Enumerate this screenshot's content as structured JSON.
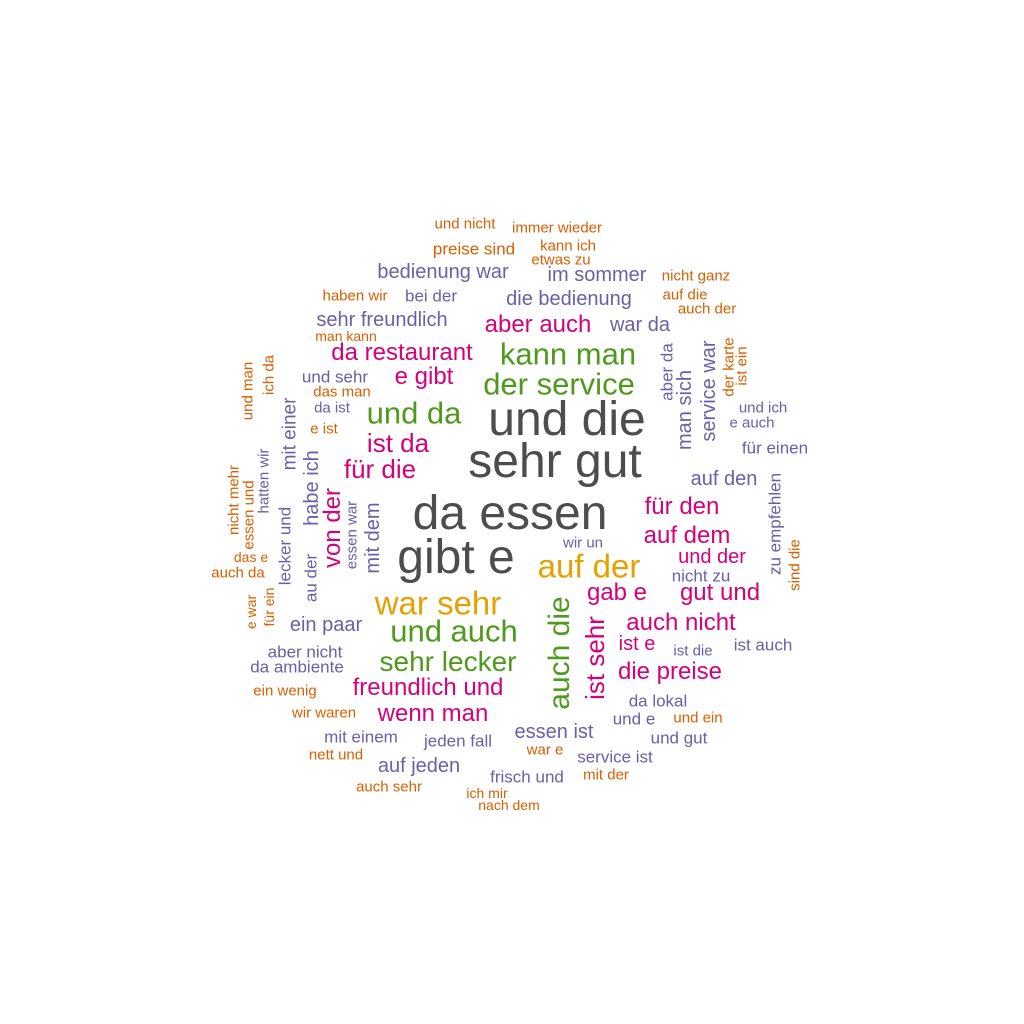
{
  "colors": {
    "gray": "#4d4d4d",
    "orange": "#d95f02",
    "purple": "#6a5fa8",
    "magenta": "#d6007a",
    "green": "#4f9a1c",
    "gold": "#e6a100"
  },
  "words": [
    {
      "text": "und nicht",
      "color": "orange"
    },
    {
      "text": "immer wieder",
      "color": "orange"
    },
    {
      "text": "preise sind",
      "color": "orange"
    },
    {
      "text": "kann ich",
      "color": "orange"
    },
    {
      "text": "etwas zu",
      "color": "orange"
    },
    {
      "text": "bedienung war",
      "color": "purple"
    },
    {
      "text": "im sommer",
      "color": "purple"
    },
    {
      "text": "nicht ganz",
      "color": "orange"
    },
    {
      "text": "haben wir",
      "color": "orange"
    },
    {
      "text": "bei der",
      "color": "purple"
    },
    {
      "text": "die bedienung",
      "color": "purple"
    },
    {
      "text": "auf die",
      "color": "orange"
    },
    {
      "text": "auch der",
      "color": "orange"
    },
    {
      "text": "sehr freundlich",
      "color": "purple"
    },
    {
      "text": "aber auch",
      "color": "magenta"
    },
    {
      "text": "war da",
      "color": "purple"
    },
    {
      "text": "man kann",
      "color": "orange"
    },
    {
      "text": "da restaurant",
      "color": "magenta"
    },
    {
      "text": "kann man",
      "color": "green"
    },
    {
      "text": "und sehr",
      "color": "purple"
    },
    {
      "text": "e gibt",
      "color": "magenta"
    },
    {
      "text": "der service",
      "color": "green"
    },
    {
      "text": "das man",
      "color": "orange"
    },
    {
      "text": "da ist",
      "color": "purple"
    },
    {
      "text": "und da",
      "color": "green"
    },
    {
      "text": "und die",
      "color": "gray"
    },
    {
      "text": "und ich",
      "color": "purple"
    },
    {
      "text": "e auch",
      "color": "purple"
    },
    {
      "text": "e ist",
      "color": "orange"
    },
    {
      "text": "ist da",
      "color": "magenta"
    },
    {
      "text": "für einen",
      "color": "purple"
    },
    {
      "text": "sehr gut",
      "color": "gray"
    },
    {
      "text": "für die",
      "color": "magenta"
    },
    {
      "text": "auf den",
      "color": "purple"
    },
    {
      "text": "da essen",
      "color": "gray"
    },
    {
      "text": "für den",
      "color": "magenta"
    },
    {
      "text": "auf dem",
      "color": "magenta"
    },
    {
      "text": "gibt e",
      "color": "gray"
    },
    {
      "text": "wir un",
      "color": "purple"
    },
    {
      "text": "auf der",
      "color": "gold"
    },
    {
      "text": "und der",
      "color": "magenta"
    },
    {
      "text": "das e",
      "color": "orange"
    },
    {
      "text": "auch da",
      "color": "orange"
    },
    {
      "text": "nicht zu",
      "color": "purple"
    },
    {
      "text": "gab e",
      "color": "magenta"
    },
    {
      "text": "gut und",
      "color": "magenta"
    },
    {
      "text": "war sehr",
      "color": "gold"
    },
    {
      "text": "ein paar",
      "color": "purple"
    },
    {
      "text": "und auch",
      "color": "green"
    },
    {
      "text": "auch nicht",
      "color": "magenta"
    },
    {
      "text": "ist e",
      "color": "magenta"
    },
    {
      "text": "ist die",
      "color": "purple"
    },
    {
      "text": "ist auch",
      "color": "purple"
    },
    {
      "text": "aber nicht",
      "color": "purple"
    },
    {
      "text": "da ambiente",
      "color": "purple"
    },
    {
      "text": "sehr lecker",
      "color": "green"
    },
    {
      "text": "die preise",
      "color": "magenta"
    },
    {
      "text": "ein wenig",
      "color": "orange"
    },
    {
      "text": "freundlich und",
      "color": "magenta"
    },
    {
      "text": "da lokal",
      "color": "purple"
    },
    {
      "text": "wir waren",
      "color": "orange"
    },
    {
      "text": "wenn man",
      "color": "magenta"
    },
    {
      "text": "und e",
      "color": "purple"
    },
    {
      "text": "und ein",
      "color": "orange"
    },
    {
      "text": "mit einem",
      "color": "purple"
    },
    {
      "text": "jeden fall",
      "color": "purple"
    },
    {
      "text": "essen ist",
      "color": "purple"
    },
    {
      "text": "und gut",
      "color": "purple"
    },
    {
      "text": "nett und",
      "color": "orange"
    },
    {
      "text": "war e",
      "color": "orange"
    },
    {
      "text": "service ist",
      "color": "purple"
    },
    {
      "text": "auf jeden",
      "color": "purple"
    },
    {
      "text": "frisch und",
      "color": "purple"
    },
    {
      "text": "mit der",
      "color": "orange"
    },
    {
      "text": "auch sehr",
      "color": "orange"
    },
    {
      "text": "ich mir",
      "color": "orange"
    },
    {
      "text": "nach dem",
      "color": "orange"
    },
    {
      "text": "und man",
      "color": "orange"
    },
    {
      "text": "ich da",
      "color": "orange"
    },
    {
      "text": "mit einer",
      "color": "purple"
    },
    {
      "text": "hatten wir",
      "color": "purple"
    },
    {
      "text": "nicht mehr",
      "color": "orange"
    },
    {
      "text": "essen und",
      "color": "orange"
    },
    {
      "text": "habe ich",
      "color": "purple"
    },
    {
      "text": "lecker und",
      "color": "purple"
    },
    {
      "text": "von der",
      "color": "magenta"
    },
    {
      "text": "essen war",
      "color": "purple"
    },
    {
      "text": "mit dem",
      "color": "purple"
    },
    {
      "text": "au der",
      "color": "purple"
    },
    {
      "text": "e war",
      "color": "orange"
    },
    {
      "text": "für ein",
      "color": "orange"
    },
    {
      "text": "auch die",
      "color": "green"
    },
    {
      "text": "ist sehr",
      "color": "magenta"
    },
    {
      "text": "aber da",
      "color": "purple"
    },
    {
      "text": "man sich",
      "color": "purple"
    },
    {
      "text": "service war",
      "color": "purple"
    },
    {
      "text": "der karte",
      "color": "orange"
    },
    {
      "text": "ist ein",
      "color": "orange"
    },
    {
      "text": "zu empfehlen",
      "color": "purple"
    },
    {
      "text": "sind die",
      "color": "orange"
    }
  ]
}
